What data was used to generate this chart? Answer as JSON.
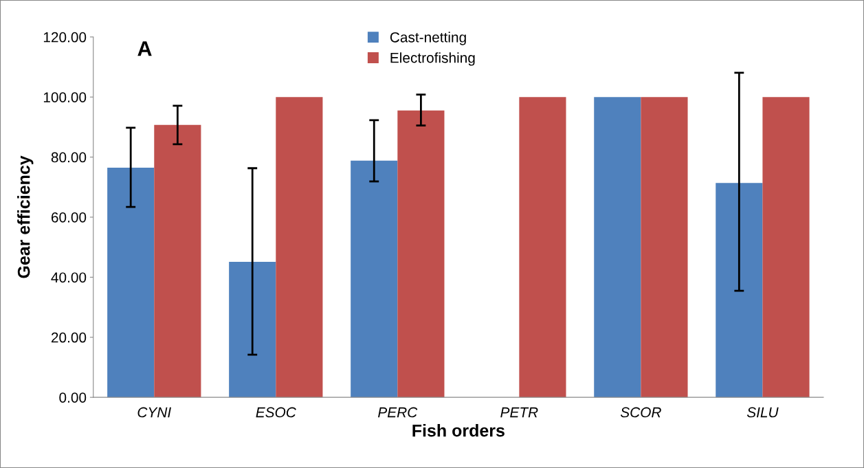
{
  "chart_data": {
    "type": "bar",
    "title": "A",
    "xlabel": "Fish orders",
    "ylabel": "Gear efficiency",
    "categories": [
      "CYNI",
      "ESOC",
      "PERC",
      "PETR",
      "SCOR",
      "SILU"
    ],
    "series": [
      {
        "name": "Cast-netting",
        "color": "#4f81bd",
        "values": [
          76.5,
          45.1,
          78.8,
          0,
          100,
          71.4
        ],
        "errors": [
          [
            63.4,
            89.8
          ],
          [
            14.2,
            76.3
          ],
          [
            71.9,
            92.3
          ],
          null,
          null,
          [
            35.5,
            108.1
          ]
        ]
      },
      {
        "name": "Electrofishing",
        "color": "#c0504d",
        "values": [
          90.7,
          100,
          95.5,
          100,
          100,
          100
        ],
        "errors": [
          [
            84.3,
            97.1
          ],
          null,
          [
            90.5,
            100.8
          ],
          null,
          null,
          null
        ]
      }
    ],
    "ylim": [
      0,
      120
    ],
    "yticks": [
      {
        "value": 0,
        "label": "0.00"
      },
      {
        "value": 20,
        "label": "20.00"
      },
      {
        "value": 40,
        "label": "40.00"
      },
      {
        "value": 60,
        "label": "60.00"
      },
      {
        "value": 80,
        "label": "80.00"
      },
      {
        "value": 100,
        "label": "100.00"
      },
      {
        "value": 120,
        "label": "120.00"
      }
    ],
    "grid": false,
    "legend": "top"
  }
}
